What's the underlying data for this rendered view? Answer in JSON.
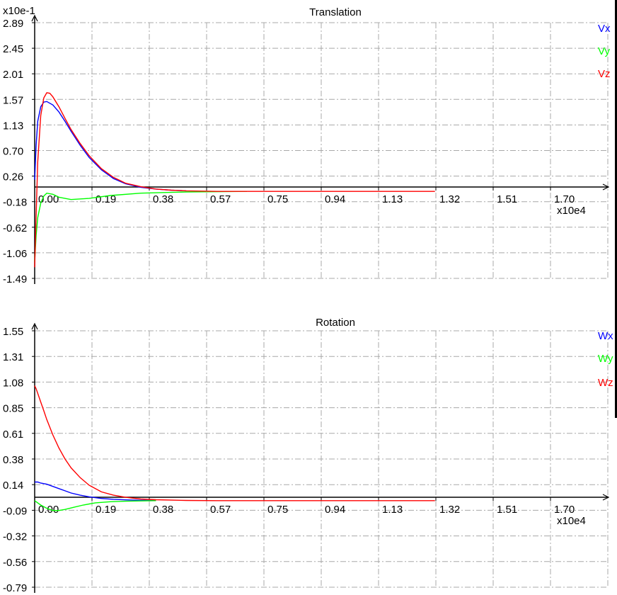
{
  "chart_data": [
    {
      "type": "line",
      "title": "Translation",
      "x_scale_label": "x10e4",
      "y_scale_label": "x10e-1",
      "x_ticks": [
        "0.00",
        "0.19",
        "0.38",
        "0.57",
        "0.75",
        "0.94",
        "1.13",
        "1.32",
        "1.51",
        "1.70"
      ],
      "y_ticks": [
        "2.89",
        "2.45",
        "2.01",
        "1.57",
        "1.13",
        "0.70",
        "0.26",
        "-0.18",
        "-0.62",
        "-1.06",
        "-1.49"
      ],
      "xlim": [
        0,
        1.89
      ],
      "ylim": [
        -1.49,
        2.89
      ],
      "grid": true,
      "legend_position": "right",
      "series": [
        {
          "name": "Vx",
          "color": "#0000ff",
          "x": [
            0.0,
            0.005,
            0.01,
            0.02,
            0.03,
            0.04,
            0.06,
            0.08,
            0.1,
            0.12,
            0.15,
            0.18,
            0.22,
            0.26,
            0.3,
            0.35,
            0.4,
            0.45,
            0.5
          ],
          "y": [
            0.2,
            0.8,
            1.2,
            1.45,
            1.53,
            1.54,
            1.48,
            1.36,
            1.2,
            1.03,
            0.79,
            0.58,
            0.37,
            0.22,
            0.13,
            0.07,
            0.04,
            0.02,
            0.01
          ]
        },
        {
          "name": "Vy",
          "color": "#00ff00",
          "x": [
            0.0,
            0.005,
            0.01,
            0.02,
            0.03,
            0.04,
            0.06,
            0.08,
            0.12,
            0.18,
            0.25,
            0.35,
            0.5,
            0.7
          ],
          "y": [
            -1.2,
            -0.75,
            -0.45,
            -0.2,
            -0.08,
            -0.03,
            -0.05,
            -0.1,
            -0.14,
            -0.12,
            -0.07,
            -0.03,
            -0.01,
            0.0
          ]
        },
        {
          "name": "Vz",
          "color": "#ff0000",
          "x": [
            0.0,
            0.005,
            0.01,
            0.02,
            0.03,
            0.04,
            0.05,
            0.06,
            0.08,
            0.1,
            0.12,
            0.15,
            0.18,
            0.22,
            0.26,
            0.3,
            0.35,
            0.4,
            0.45,
            0.5,
            0.6,
            0.75,
            1.0,
            1.32
          ],
          "y": [
            -1.3,
            -0.4,
            0.5,
            1.3,
            1.6,
            1.69,
            1.68,
            1.62,
            1.45,
            1.25,
            1.06,
            0.82,
            0.61,
            0.39,
            0.24,
            0.14,
            0.08,
            0.04,
            0.02,
            0.01,
            0.0,
            0.0,
            0.0,
            0.0
          ]
        }
      ]
    },
    {
      "type": "line",
      "title": "Rotation",
      "x_scale_label": "x10e4",
      "y_scale_label": "",
      "x_ticks": [
        "0.00",
        "0.19",
        "0.38",
        "0.57",
        "0.75",
        "0.94",
        "1.13",
        "1.32",
        "1.51",
        "1.70"
      ],
      "y_ticks": [
        "1.55",
        "1.31",
        "1.08",
        "0.85",
        "0.61",
        "0.38",
        "0.14",
        "-0.09",
        "-0.32",
        "-0.56",
        "-0.79"
      ],
      "xlim": [
        0,
        1.89
      ],
      "ylim": [
        -0.79,
        1.55
      ],
      "grid": true,
      "legend_position": "right",
      "series": [
        {
          "name": "Wx",
          "color": "#0000ff",
          "x": [
            0.0,
            0.01,
            0.02,
            0.04,
            0.06,
            0.08,
            0.1,
            0.12,
            0.15,
            0.18,
            0.22,
            0.26,
            0.3,
            0.35,
            0.4
          ],
          "y": [
            0.17,
            0.17,
            0.16,
            0.15,
            0.13,
            0.11,
            0.09,
            0.07,
            0.05,
            0.035,
            0.02,
            0.012,
            0.007,
            0.003,
            0.001
          ]
        },
        {
          "name": "Wy",
          "color": "#00ff00",
          "x": [
            0.0,
            0.01,
            0.02,
            0.04,
            0.06,
            0.08,
            0.1,
            0.13,
            0.16,
            0.2,
            0.25,
            0.3,
            0.4
          ],
          "y": [
            0.0,
            -0.02,
            -0.04,
            -0.07,
            -0.09,
            -0.09,
            -0.08,
            -0.06,
            -0.04,
            -0.02,
            -0.01,
            -0.005,
            0.0
          ]
        },
        {
          "name": "Wz",
          "color": "#ff0000",
          "x": [
            0.0,
            0.005,
            0.01,
            0.02,
            0.03,
            0.04,
            0.06,
            0.08,
            0.1,
            0.12,
            0.15,
            0.18,
            0.22,
            0.26,
            0.3,
            0.35,
            0.4,
            0.5,
            0.6,
            0.75,
            1.0,
            1.32
          ],
          "y": [
            1.05,
            1.02,
            0.98,
            0.9,
            0.82,
            0.74,
            0.6,
            0.48,
            0.38,
            0.3,
            0.21,
            0.14,
            0.08,
            0.05,
            0.03,
            0.015,
            0.008,
            0.002,
            0.0,
            0.0,
            0.0,
            0.0
          ]
        }
      ]
    }
  ]
}
